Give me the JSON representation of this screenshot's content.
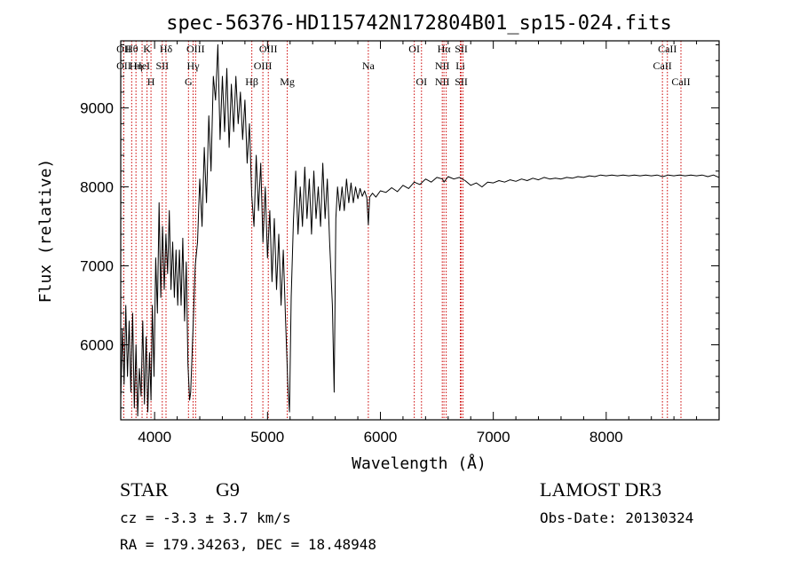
{
  "chart_data": {
    "type": "line",
    "title": "spec-56376-HD115742N172804B01_sp15-024.fits",
    "xlabel": "Wavelength (Å)",
    "ylabel": "Flux (relative)",
    "xlim": [
      3700,
      9000
    ],
    "ylim": [
      5050,
      9850
    ],
    "xticks": [
      4000,
      5000,
      6000,
      7000,
      8000
    ],
    "yticks": [
      6000,
      7000,
      8000,
      9000
    ],
    "grid": false,
    "line_color": "#000000",
    "marker_color": "#cc0000",
    "series": [
      {
        "points": [
          [
            3700,
            5300
          ],
          [
            3715,
            6200
          ],
          [
            3730,
            5500
          ],
          [
            3745,
            6500
          ],
          [
            3760,
            5600
          ],
          [
            3775,
            6300
          ],
          [
            3790,
            5400
          ],
          [
            3805,
            6400
          ],
          [
            3820,
            5200
          ],
          [
            3835,
            6000
          ],
          [
            3850,
            5100
          ],
          [
            3865,
            5700
          ],
          [
            3880,
            5350
          ],
          [
            3895,
            6300
          ],
          [
            3910,
            5250
          ],
          [
            3925,
            6100
          ],
          [
            3940,
            5150
          ],
          [
            3955,
            5900
          ],
          [
            3968,
            5300
          ],
          [
            3980,
            6500
          ],
          [
            3995,
            5600
          ],
          [
            4010,
            7100
          ],
          [
            4025,
            6400
          ],
          [
            4040,
            7800
          ],
          [
            4055,
            6600
          ],
          [
            4070,
            7500
          ],
          [
            4085,
            6700
          ],
          [
            4100,
            7400
          ],
          [
            4115,
            6900
          ],
          [
            4130,
            7700
          ],
          [
            4145,
            6700
          ],
          [
            4160,
            7300
          ],
          [
            4175,
            6600
          ],
          [
            4190,
            7200
          ],
          [
            4205,
            6500
          ],
          [
            4220,
            7200
          ],
          [
            4235,
            6500
          ],
          [
            4250,
            7350
          ],
          [
            4265,
            6300
          ],
          [
            4280,
            7050
          ],
          [
            4295,
            5750
          ],
          [
            4310,
            5300
          ],
          [
            4320,
            5400
          ],
          [
            4340,
            6200
          ],
          [
            4360,
            7000
          ],
          [
            4380,
            7300
          ],
          [
            4400,
            8100
          ],
          [
            4420,
            7500
          ],
          [
            4440,
            8500
          ],
          [
            4460,
            7800
          ],
          [
            4480,
            8900
          ],
          [
            4500,
            8200
          ],
          [
            4520,
            9400
          ],
          [
            4540,
            9100
          ],
          [
            4560,
            9800
          ],
          [
            4580,
            8600
          ],
          [
            4600,
            9400
          ],
          [
            4620,
            8700
          ],
          [
            4640,
            9500
          ],
          [
            4660,
            8500
          ],
          [
            4680,
            9300
          ],
          [
            4700,
            8700
          ],
          [
            4720,
            9400
          ],
          [
            4740,
            8800
          ],
          [
            4760,
            9200
          ],
          [
            4780,
            8600
          ],
          [
            4800,
            9100
          ],
          [
            4820,
            8300
          ],
          [
            4840,
            8800
          ],
          [
            4860,
            7900
          ],
          [
            4880,
            7500
          ],
          [
            4900,
            8400
          ],
          [
            4920,
            7700
          ],
          [
            4940,
            8300
          ],
          [
            4960,
            7300
          ],
          [
            4980,
            8000
          ],
          [
            5000,
            7100
          ],
          [
            5020,
            7700
          ],
          [
            5040,
            6800
          ],
          [
            5060,
            7600
          ],
          [
            5080,
            6700
          ],
          [
            5100,
            7400
          ],
          [
            5120,
            6500
          ],
          [
            5140,
            7200
          ],
          [
            5160,
            6300
          ],
          [
            5180,
            5500
          ],
          [
            5195,
            5150
          ],
          [
            5210,
            6600
          ],
          [
            5230,
            7600
          ],
          [
            5250,
            8200
          ],
          [
            5270,
            7400
          ],
          [
            5290,
            8000
          ],
          [
            5310,
            7500
          ],
          [
            5330,
            8250
          ],
          [
            5350,
            7600
          ],
          [
            5370,
            8100
          ],
          [
            5390,
            7400
          ],
          [
            5410,
            8200
          ],
          [
            5430,
            7600
          ],
          [
            5450,
            8000
          ],
          [
            5470,
            7500
          ],
          [
            5490,
            8300
          ],
          [
            5510,
            7600
          ],
          [
            5530,
            8100
          ],
          [
            5550,
            7300
          ],
          [
            5575,
            6500
          ],
          [
            5590,
            5400
          ],
          [
            5605,
            7600
          ],
          [
            5620,
            8000
          ],
          [
            5640,
            7700
          ],
          [
            5660,
            8000
          ],
          [
            5680,
            7700
          ],
          [
            5700,
            8100
          ],
          [
            5720,
            7800
          ],
          [
            5740,
            8050
          ],
          [
            5760,
            7800
          ],
          [
            5780,
            8000
          ],
          [
            5800,
            7850
          ],
          [
            5820,
            7980
          ],
          [
            5840,
            7880
          ],
          [
            5860,
            7950
          ],
          [
            5880,
            7860
          ],
          [
            5893,
            7520
          ],
          [
            5905,
            7870
          ],
          [
            5930,
            7920
          ],
          [
            5960,
            7870
          ],
          [
            6000,
            7950
          ],
          [
            6050,
            7930
          ],
          [
            6100,
            7990
          ],
          [
            6150,
            7940
          ],
          [
            6200,
            8020
          ],
          [
            6250,
            7980
          ],
          [
            6300,
            8060
          ],
          [
            6350,
            8030
          ],
          [
            6400,
            8100
          ],
          [
            6450,
            8060
          ],
          [
            6500,
            8120
          ],
          [
            6550,
            8100
          ],
          [
            6563,
            8060
          ],
          [
            6600,
            8130
          ],
          [
            6650,
            8100
          ],
          [
            6700,
            8120
          ],
          [
            6750,
            8080
          ],
          [
            6800,
            8020
          ],
          [
            6850,
            8050
          ],
          [
            6900,
            8000
          ],
          [
            6950,
            8060
          ],
          [
            7000,
            8050
          ],
          [
            7050,
            8080
          ],
          [
            7100,
            8060
          ],
          [
            7150,
            8090
          ],
          [
            7200,
            8070
          ],
          [
            7250,
            8100
          ],
          [
            7300,
            8080
          ],
          [
            7350,
            8110
          ],
          [
            7400,
            8090
          ],
          [
            7450,
            8120
          ],
          [
            7500,
            8100
          ],
          [
            7550,
            8110
          ],
          [
            7600,
            8100
          ],
          [
            7650,
            8120
          ],
          [
            7700,
            8110
          ],
          [
            7750,
            8130
          ],
          [
            7800,
            8120
          ],
          [
            7850,
            8140
          ],
          [
            7900,
            8130
          ],
          [
            7950,
            8150
          ],
          [
            8000,
            8140
          ],
          [
            8050,
            8150
          ],
          [
            8100,
            8140
          ],
          [
            8150,
            8150
          ],
          [
            8200,
            8140
          ],
          [
            8250,
            8150
          ],
          [
            8300,
            8140
          ],
          [
            8350,
            8150
          ],
          [
            8400,
            8140
          ],
          [
            8450,
            8150
          ],
          [
            8500,
            8130
          ],
          [
            8550,
            8150
          ],
          [
            8600,
            8140
          ],
          [
            8650,
            8150
          ],
          [
            8700,
            8140
          ],
          [
            8750,
            8150
          ],
          [
            8800,
            8140
          ],
          [
            8850,
            8150
          ],
          [
            8900,
            8130
          ],
          [
            8950,
            8150
          ],
          [
            9000,
            8120
          ]
        ]
      }
    ],
    "line_markers": [
      {
        "wavelength": 3727,
        "labels": [
          "OII",
          "OII"
        ]
      },
      {
        "wavelength": 3797,
        "labels": [
          "Hθ",
          "",
          ""
        ]
      },
      {
        "wavelength": 3835,
        "labels": [
          "",
          "Hη"
        ]
      },
      {
        "wavelength": 3889,
        "labels": [
          "",
          "HeI"
        ]
      },
      {
        "wavelength": 3933,
        "labels": [
          "K"
        ]
      },
      {
        "wavelength": 3968,
        "labels": [
          "",
          "",
          "H"
        ]
      },
      {
        "wavelength": 4068,
        "labels": [
          "",
          "SII"
        ]
      },
      {
        "wavelength": 4101,
        "labels": [
          "Hδ"
        ]
      },
      {
        "wavelength": 4300,
        "labels": [
          "",
          "",
          "G"
        ]
      },
      {
        "wavelength": 4341,
        "labels": [
          "",
          "Hγ"
        ]
      },
      {
        "wavelength": 4363,
        "labels": [
          "OIII"
        ]
      },
      {
        "wavelength": 4861,
        "labels": [
          "",
          "",
          "Hβ"
        ]
      },
      {
        "wavelength": 4959,
        "labels": [
          "",
          "OIII"
        ]
      },
      {
        "wavelength": 5007,
        "labels": [
          "OIII"
        ]
      },
      {
        "wavelength": 5175,
        "labels": [
          "",
          "",
          "Mg"
        ]
      },
      {
        "wavelength": 5893,
        "labels": [
          "",
          "Na"
        ]
      },
      {
        "wavelength": 6300,
        "labels": [
          "OI"
        ]
      },
      {
        "wavelength": 6364,
        "labels": [
          "",
          "",
          "OI"
        ]
      },
      {
        "wavelength": 6548,
        "labels": [
          "",
          "NII",
          "NII"
        ]
      },
      {
        "wavelength": 6563,
        "labels": [
          "Hα"
        ]
      },
      {
        "wavelength": 6583,
        "labels": [
          ""
        ]
      },
      {
        "wavelength": 6708,
        "labels": [
          "",
          "Li"
        ]
      },
      {
        "wavelength": 6716,
        "labels": [
          "SII",
          "",
          "SII"
        ]
      },
      {
        "wavelength": 6731,
        "labels": [
          ""
        ]
      },
      {
        "wavelength": 8498,
        "labels": [
          "",
          "CaII"
        ]
      },
      {
        "wavelength": 8542,
        "labels": [
          "CaII"
        ]
      },
      {
        "wavelength": 8662,
        "labels": [
          "",
          "",
          "CaII"
        ]
      }
    ]
  },
  "info": {
    "class": "STAR",
    "subclass": "G9",
    "survey": "LAMOST DR3",
    "cz": "cz = -3.3 ± 3.7 km/s",
    "obs_date": "Obs-Date: 20130324",
    "radec": "RA = 179.34263, DEC =  18.48948"
  }
}
